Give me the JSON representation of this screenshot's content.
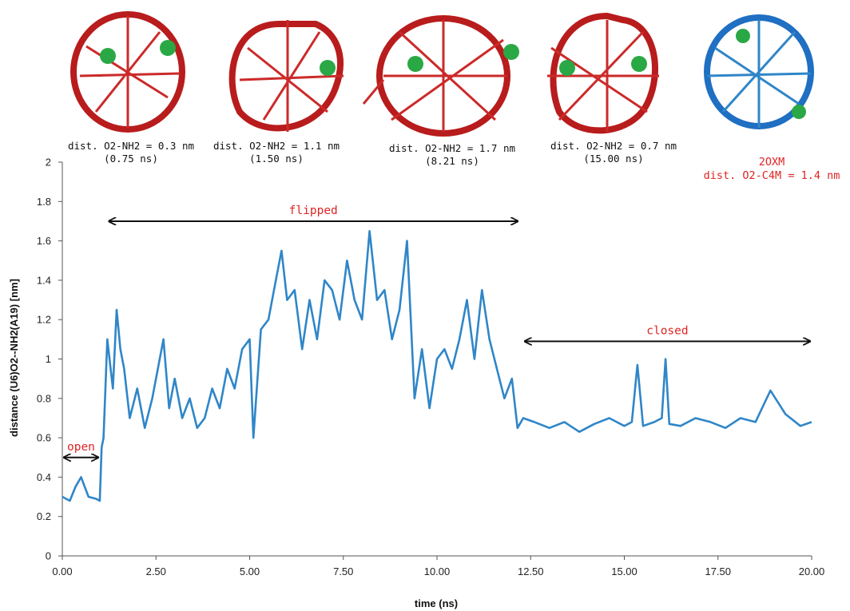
{
  "chart_data": {
    "type": "line",
    "title": "",
    "xlabel": "time (ns)",
    "ylabel": "distance (U6)O2--NH2(A19) [nm]",
    "xlim": [
      0,
      20
    ],
    "ylim": [
      0,
      2
    ],
    "xticks": [
      "0.00",
      "2.50",
      "5.00",
      "7.50",
      "10.00",
      "12.50",
      "15.00",
      "17.50",
      "20.00"
    ],
    "yticks": [
      "0",
      "0.2",
      "0.4",
      "0.6",
      "0.8",
      "1",
      "1.2",
      "1.4",
      "1.6",
      "1.8",
      "2"
    ],
    "series_color": "#2f86c8",
    "series": [
      {
        "x": [
          0,
          0.2,
          0.35,
          0.5,
          0.7,
          0.9,
          1.0,
          1.05,
          1.1,
          1.2,
          1.35,
          1.45,
          1.55,
          1.65,
          1.8,
          2.0,
          2.2,
          2.4,
          2.55,
          2.7,
          2.85,
          3.0,
          3.2,
          3.4,
          3.6,
          3.8,
          4.0,
          4.2,
          4.4,
          4.6,
          4.8,
          5.0,
          5.1,
          5.3,
          5.5,
          5.7,
          5.85,
          6.0,
          6.2,
          6.4,
          6.6,
          6.8,
          7.0,
          7.2,
          7.4,
          7.6,
          7.8,
          8.0,
          8.2,
          8.4,
          8.6,
          8.8,
          9.0,
          9.2,
          9.4,
          9.6,
          9.8,
          10.0,
          10.2,
          10.4,
          10.6,
          10.8,
          11.0,
          11.2,
          11.4,
          11.6,
          11.8,
          12.0,
          12.15,
          12.3,
          12.6,
          13.0,
          13.4,
          13.8,
          14.2,
          14.6,
          15.0,
          15.2,
          15.35,
          15.5,
          15.8,
          16.0,
          16.1,
          16.2,
          16.5,
          16.9,
          17.3,
          17.7,
          18.1,
          18.5,
          18.9,
          19.3,
          19.7,
          20.0
        ],
        "y": [
          0.3,
          0.28,
          0.35,
          0.4,
          0.3,
          0.29,
          0.28,
          0.55,
          0.6,
          1.1,
          0.85,
          1.25,
          1.05,
          0.95,
          0.7,
          0.85,
          0.65,
          0.8,
          0.95,
          1.1,
          0.75,
          0.9,
          0.7,
          0.8,
          0.65,
          0.7,
          0.85,
          0.75,
          0.95,
          0.85,
          1.05,
          1.1,
          0.6,
          1.15,
          1.2,
          1.4,
          1.55,
          1.3,
          1.35,
          1.05,
          1.3,
          1.1,
          1.4,
          1.35,
          1.2,
          1.5,
          1.3,
          1.2,
          1.65,
          1.3,
          1.35,
          1.1,
          1.25,
          1.6,
          0.8,
          1.05,
          0.75,
          1.0,
          1.05,
          0.95,
          1.1,
          1.3,
          1.0,
          1.35,
          1.1,
          0.95,
          0.8,
          0.9,
          0.65,
          0.7,
          0.68,
          0.65,
          0.68,
          0.63,
          0.67,
          0.7,
          0.66,
          0.68,
          0.97,
          0.66,
          0.68,
          0.7,
          1.0,
          0.67,
          0.66,
          0.7,
          0.68,
          0.65,
          0.7,
          0.68,
          0.84,
          0.72,
          0.66,
          0.68
        ]
      }
    ],
    "regions": [
      {
        "label": "open",
        "x_start": 0.0,
        "x_end": 1.0,
        "y": 0.5
      },
      {
        "label": "flipped",
        "x_start": 1.2,
        "x_end": 12.2,
        "y": 1.7
      },
      {
        "label": "closed",
        "x_start": 12.3,
        "x_end": 20.0,
        "y": 1.09
      }
    ],
    "structure_captions": [
      {
        "line1": "dist. O2-NH2 = 0.3 nm",
        "line2": "(0.75 ns)"
      },
      {
        "line1": "dist. O2-NH2 = 1.1 nm",
        "line2": "(1.50 ns)"
      },
      {
        "line1": "dist. O2-NH2 = 1.7 nm",
        "line2": "(8.21 ns)"
      },
      {
        "line1": "dist. O2-NH2 = 0.7 nm",
        "line2": "(15.00 ns)"
      },
      {
        "line1": "2OXM",
        "line2": "dist. O2-C4M = 1.4 nm",
        "highlight": true
      }
    ]
  }
}
